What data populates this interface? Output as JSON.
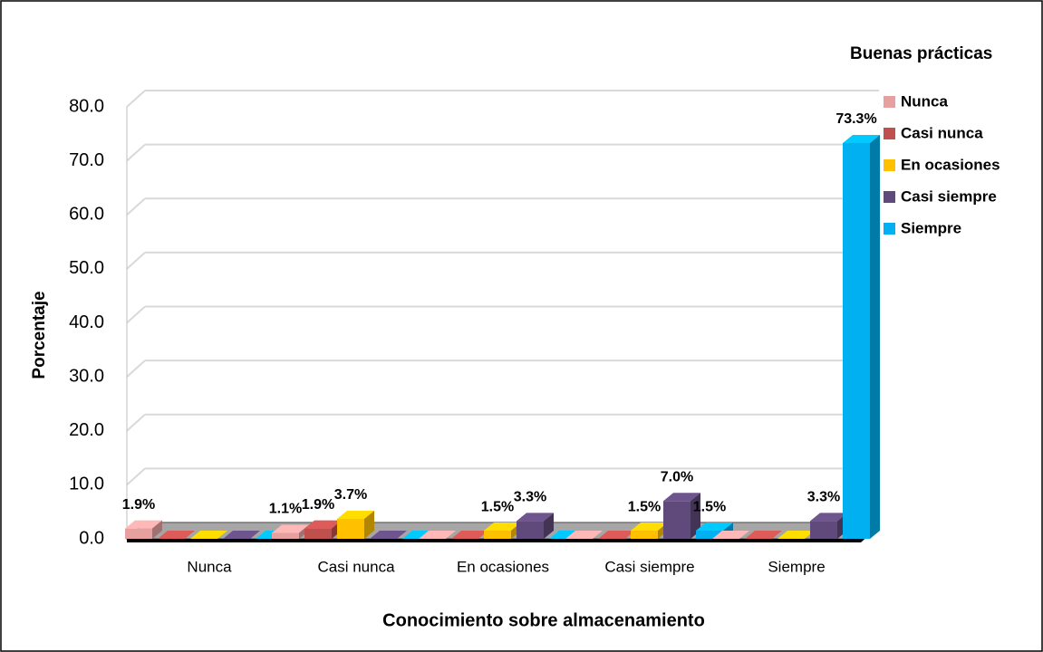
{
  "chart_data": {
    "type": "bar3d",
    "xlabel": "Conocimiento sobre almacenamiento",
    "ylabel": "Porcentaje",
    "legend_title": "Buenas prácticas",
    "legend": "right",
    "grid": true,
    "categories": [
      "Nunca",
      "Casi nunca",
      "En ocasiones",
      "Casi siempre",
      "Siempre"
    ],
    "series": [
      {
        "name": "Nunca",
        "color": "#e6a0a0",
        "values": [
          1.9,
          1.1,
          0,
          0,
          0
        ],
        "value_labels": [
          "1.9%",
          "1.1%",
          null,
          null,
          null
        ]
      },
      {
        "name": "Casi nunca",
        "color": "#c0504d",
        "values": [
          0,
          1.9,
          0,
          0,
          0
        ],
        "value_labels": [
          null,
          "1.9%",
          null,
          null,
          null
        ]
      },
      {
        "name": "En ocasiones",
        "color": "#ffc000",
        "values": [
          0,
          3.7,
          1.5,
          1.5,
          0
        ],
        "value_labels": [
          null,
          "3.7%",
          "1.5%",
          "1.5%",
          null
        ]
      },
      {
        "name": "Casi siempre",
        "color": "#604a7b",
        "values": [
          0,
          0,
          3.3,
          7.0,
          3.3
        ],
        "value_labels": [
          null,
          null,
          "3.3%",
          "7.0%",
          "3.3%"
        ]
      },
      {
        "name": "Siempre",
        "color": "#00b0f0",
        "values": [
          0,
          0,
          0,
          1.5,
          73.3
        ],
        "value_labels": [
          null,
          null,
          null,
          "1.5%",
          "73.3%"
        ]
      }
    ],
    "ylim": [
      0,
      80
    ],
    "yticks": [
      {
        "value": 0,
        "label": "0.0"
      },
      {
        "value": 10,
        "label": "10.0"
      },
      {
        "value": 20,
        "label": "20.0"
      },
      {
        "value": 30,
        "label": "30.0"
      },
      {
        "value": 40,
        "label": "40.0"
      },
      {
        "value": 50,
        "label": "50.0"
      },
      {
        "value": 60,
        "label": "60.0"
      },
      {
        "value": 70,
        "label": "70.0"
      },
      {
        "value": 80,
        "label": "80.0"
      }
    ]
  }
}
